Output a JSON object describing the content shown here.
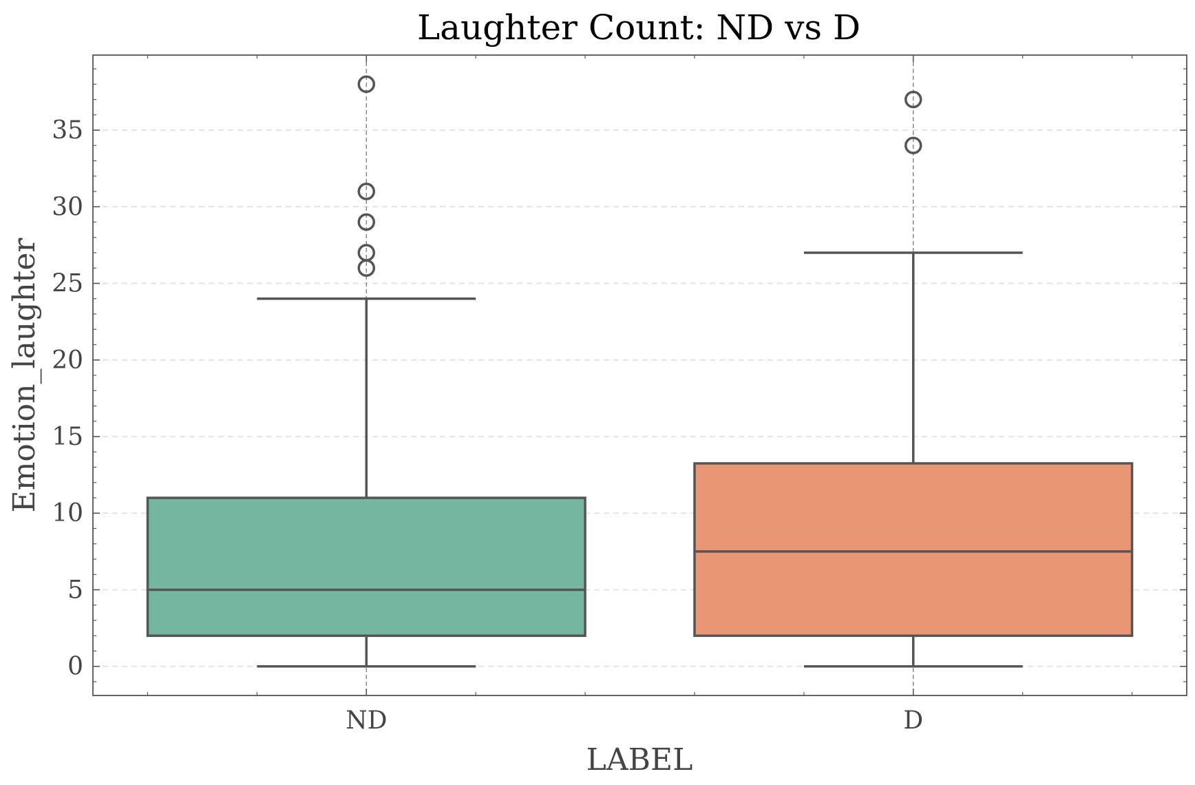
{
  "chart_data": {
    "type": "box",
    "title": "Laughter Count: ND vs D",
    "xlabel": "LABEL",
    "ylabel": "Emotion_laughter",
    "ylim": [
      -1.9,
      39.9
    ],
    "yticks": [
      0,
      5,
      10,
      15,
      20,
      25,
      30,
      35
    ],
    "grid": true,
    "categories": [
      "ND",
      "D"
    ],
    "boxes": [
      {
        "category": "ND",
        "whisker_low": 0,
        "q1": 2,
        "median": 5,
        "q3": 11,
        "whisker_high": 24,
        "outliers": [
          26,
          27,
          29,
          31,
          38
        ],
        "color": "#74b6a0"
      },
      {
        "category": "D",
        "whisker_low": 0,
        "q1": 2,
        "median": 7.5,
        "q3": 13.25,
        "whisker_high": 27,
        "outliers": [
          34,
          37
        ],
        "color": "#e89674"
      }
    ],
    "edge_color": "#555555",
    "grid_color": "#dddddd"
  }
}
